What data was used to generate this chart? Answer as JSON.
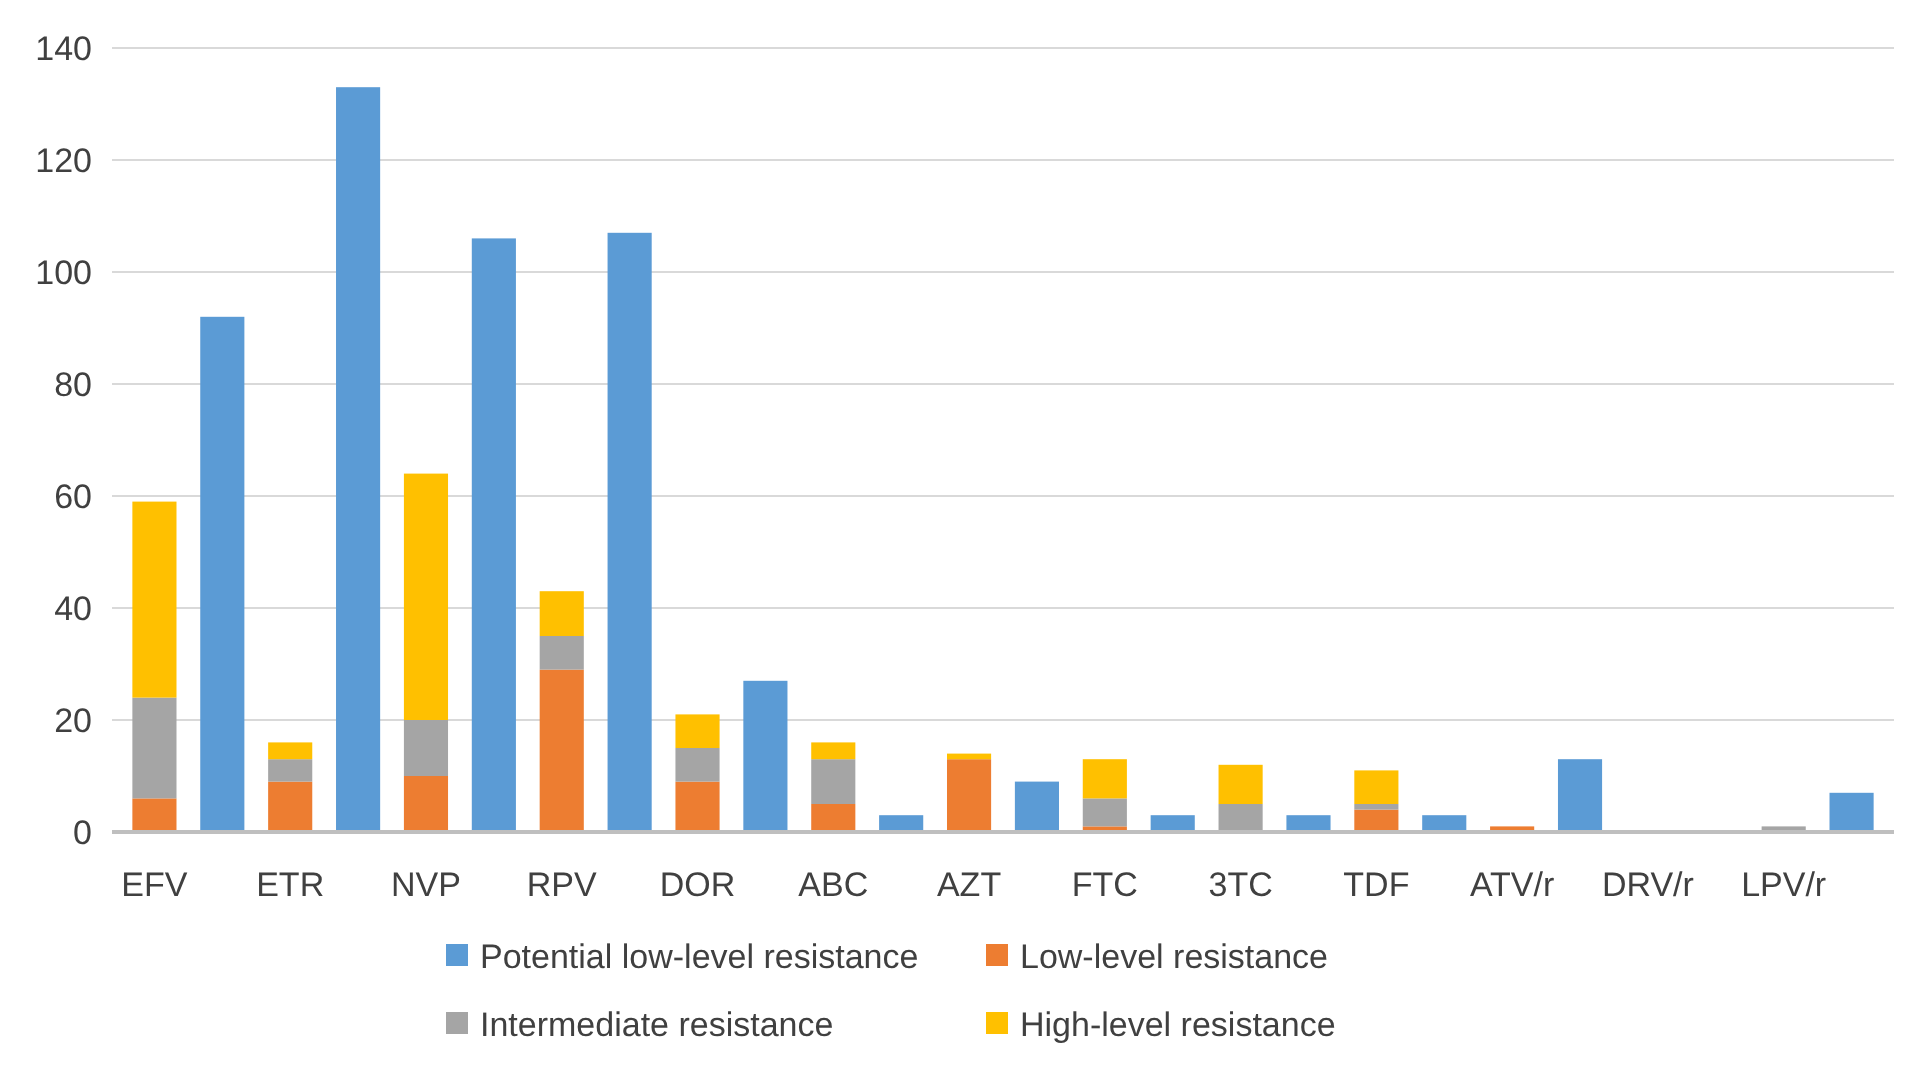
{
  "chart_data": {
    "type": "bar",
    "stacked": true,
    "categories": [
      "EFV",
      null,
      "ETR",
      null,
      "NVP",
      null,
      "RPV",
      null,
      "DOR",
      null,
      "ABC",
      null,
      "AZT",
      null,
      "FTC",
      null,
      "3TC",
      null,
      "TDF",
      null,
      "ATV/r",
      null,
      "DRV/r",
      null,
      "LPV/r",
      null
    ],
    "series": [
      {
        "name": "Potential low-level resistance",
        "color": "#5b9bd5",
        "values": [
          null,
          92,
          null,
          133,
          null,
          106,
          null,
          107,
          null,
          27,
          null,
          3,
          null,
          9,
          null,
          3,
          null,
          3,
          null,
          3,
          null,
          13,
          null,
          0,
          null,
          7
        ]
      },
      {
        "name": "Low-level resistance",
        "color": "#ed7d31",
        "values": [
          6,
          null,
          9,
          null,
          10,
          null,
          29,
          null,
          9,
          null,
          5,
          null,
          13,
          null,
          1,
          null,
          0,
          null,
          4,
          null,
          1,
          null,
          0,
          null,
          0,
          null
        ]
      },
      {
        "name": "Intermediate resistance",
        "color": "#a5a5a5",
        "values": [
          18,
          null,
          4,
          null,
          10,
          null,
          6,
          null,
          6,
          null,
          8,
          null,
          0,
          null,
          5,
          null,
          5,
          null,
          1,
          null,
          0,
          null,
          0,
          null,
          1,
          null
        ]
      },
      {
        "name": "High-level resistance",
        "color": "#ffc000",
        "values": [
          35,
          null,
          3,
          null,
          44,
          null,
          8,
          null,
          6,
          null,
          3,
          null,
          1,
          null,
          7,
          null,
          7,
          null,
          6,
          null,
          0,
          null,
          0,
          null,
          0,
          null
        ]
      }
    ],
    "ylim": [
      0,
      140
    ],
    "yticks": [
      0,
      20,
      40,
      60,
      80,
      100,
      120,
      140
    ],
    "grid": "y",
    "legend": "bottom"
  }
}
